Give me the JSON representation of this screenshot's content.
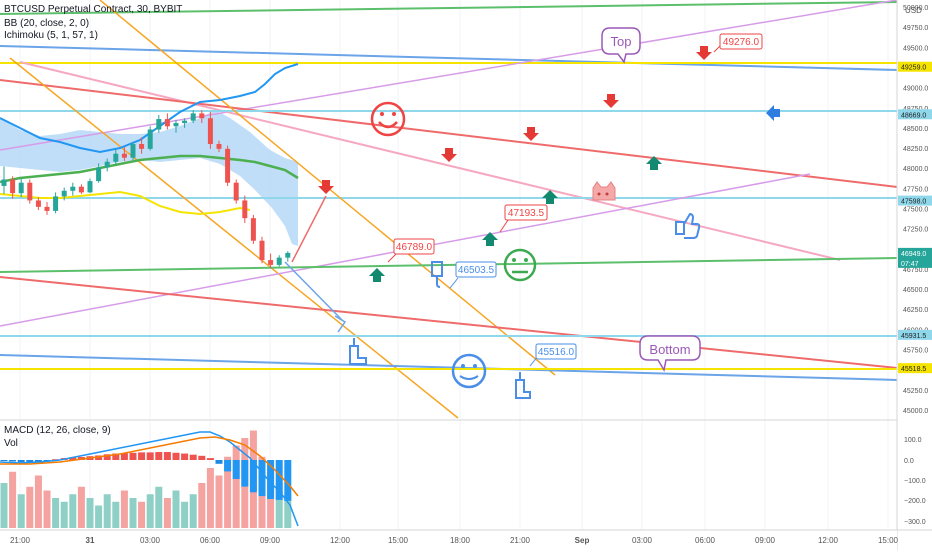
{
  "header": {
    "symbol": "BTCUSD Perpetual Contract, 30, BYBIT",
    "bb": "BB (20, close, 2, 0)",
    "ichimoku": "Ichimoku (5, 1, 57, 1)",
    "currency": "USD"
  },
  "macd": {
    "title": "MACD (12, 26, close, 9)",
    "vol": "Vol",
    "ticks": [
      "100.0",
      "0.0",
      "−100.0",
      "−200.0",
      "−300.0"
    ]
  },
  "labels": {
    "top": "Top",
    "bottom": "Bottom",
    "p49276": "49276.0",
    "p47193": "47193.5",
    "p46789": "46789.0",
    "p46503": "46503.5",
    "p45516": "45516.0"
  },
  "price_axis": {
    "ticks": [
      "50000.0",
      "49750.0",
      "49500.0",
      "49000.0",
      "48750.0",
      "48500.0",
      "48250.0",
      "48000.0",
      "47750.0",
      "47500.0",
      "47250.0",
      "46750.0",
      "46500.0",
      "46250.0",
      "46000.0",
      "45750.0",
      "45250.0",
      "45000.0"
    ],
    "markers": [
      {
        "value": "49259.0",
        "bg": "#f5e400",
        "fg": "#222222"
      },
      {
        "value": "48669.0",
        "bg": "#8fd8ec",
        "fg": "#222222"
      },
      {
        "value": "47598.0",
        "bg": "#8fd8ec",
        "fg": "#222222"
      },
      {
        "value": "46949.0",
        "bg": "#26a69a",
        "fg": "#ffffff",
        "sub": "07:47"
      },
      {
        "value": "45931.5",
        "bg": "#8fd8ec",
        "fg": "#222222"
      },
      {
        "value": "45518.5",
        "bg": "#f5e400",
        "fg": "#222222"
      }
    ]
  },
  "time_axis": {
    "ticks": [
      "21:00",
      "31",
      "03:00",
      "06:00",
      "09:00",
      "12:00",
      "15:00",
      "18:00",
      "21:00",
      "Sep",
      "03:00",
      "06:00",
      "09:00",
      "12:00",
      "15:00"
    ]
  },
  "chart_data": {
    "type": "candlestick",
    "title": "BTCUSD Perpetual Contract, 30, BYBIT",
    "ylim": [
      44900,
      50050
    ],
    "candles": [
      {
        "o": 47780,
        "h": 48020,
        "l": 47680,
        "c": 47860
      },
      {
        "o": 47860,
        "h": 47900,
        "l": 47620,
        "c": 47690
      },
      {
        "o": 47690,
        "h": 47880,
        "l": 47640,
        "c": 47820
      },
      {
        "o": 47820,
        "h": 47860,
        "l": 47560,
        "c": 47600
      },
      {
        "o": 47600,
        "h": 47640,
        "l": 47480,
        "c": 47520
      },
      {
        "o": 47520,
        "h": 47580,
        "l": 47420,
        "c": 47470
      },
      {
        "o": 47470,
        "h": 47700,
        "l": 47440,
        "c": 47650
      },
      {
        "o": 47650,
        "h": 47760,
        "l": 47600,
        "c": 47720
      },
      {
        "o": 47720,
        "h": 47820,
        "l": 47660,
        "c": 47770
      },
      {
        "o": 47770,
        "h": 47800,
        "l": 47680,
        "c": 47700
      },
      {
        "o": 47700,
        "h": 47870,
        "l": 47690,
        "c": 47840
      },
      {
        "o": 47840,
        "h": 48060,
        "l": 47820,
        "c": 48010
      },
      {
        "o": 48010,
        "h": 48120,
        "l": 47960,
        "c": 48080
      },
      {
        "o": 48080,
        "h": 48230,
        "l": 48040,
        "c": 48180
      },
      {
        "o": 48180,
        "h": 48260,
        "l": 48090,
        "c": 48130
      },
      {
        "o": 48130,
        "h": 48330,
        "l": 48100,
        "c": 48300
      },
      {
        "o": 48300,
        "h": 48380,
        "l": 48180,
        "c": 48240
      },
      {
        "o": 48240,
        "h": 48520,
        "l": 48220,
        "c": 48480
      },
      {
        "o": 48480,
        "h": 48660,
        "l": 48440,
        "c": 48610
      },
      {
        "o": 48610,
        "h": 48680,
        "l": 48480,
        "c": 48520
      },
      {
        "o": 48520,
        "h": 48600,
        "l": 48440,
        "c": 48560
      },
      {
        "o": 48560,
        "h": 48620,
        "l": 48500,
        "c": 48590
      },
      {
        "o": 48590,
        "h": 48720,
        "l": 48560,
        "c": 48680
      },
      {
        "o": 48680,
        "h": 48720,
        "l": 48560,
        "c": 48620
      },
      {
        "o": 48620,
        "h": 48700,
        "l": 48240,
        "c": 48300
      },
      {
        "o": 48300,
        "h": 48340,
        "l": 48200,
        "c": 48240
      },
      {
        "o": 48240,
        "h": 48280,
        "l": 47780,
        "c": 47820
      },
      {
        "o": 47820,
        "h": 47860,
        "l": 47560,
        "c": 47600
      },
      {
        "o": 47600,
        "h": 47660,
        "l": 47320,
        "c": 47380
      },
      {
        "o": 47380,
        "h": 47420,
        "l": 47060,
        "c": 47100
      },
      {
        "o": 47100,
        "h": 47150,
        "l": 46820,
        "c": 46860
      },
      {
        "o": 46860,
        "h": 46940,
        "l": 46760,
        "c": 46800
      },
      {
        "o": 46800,
        "h": 46920,
        "l": 46780,
        "c": 46890
      },
      {
        "o": 46890,
        "h": 46970,
        "l": 46840,
        "c": 46949
      }
    ],
    "volume": [
      60,
      75,
      45,
      55,
      70,
      50,
      40,
      35,
      45,
      55,
      40,
      30,
      45,
      35,
      50,
      40,
      35,
      45,
      55,
      40,
      50,
      35,
      45,
      60,
      80,
      70,
      95,
      110,
      120,
      130,
      95,
      80,
      60,
      45
    ],
    "macd_hist": [
      -5,
      -8,
      -12,
      -15,
      -10,
      -6,
      4,
      10,
      14,
      16,
      20,
      24,
      30,
      34,
      36,
      38,
      40,
      40,
      42,
      42,
      38,
      34,
      28,
      22,
      10,
      -20,
      -60,
      -100,
      -140,
      -170,
      -190,
      -205,
      -210,
      -215
    ],
    "horizontal_levels": [
      49259.0,
      48669.0,
      47598.0,
      45931.5,
      45518.5
    ]
  }
}
